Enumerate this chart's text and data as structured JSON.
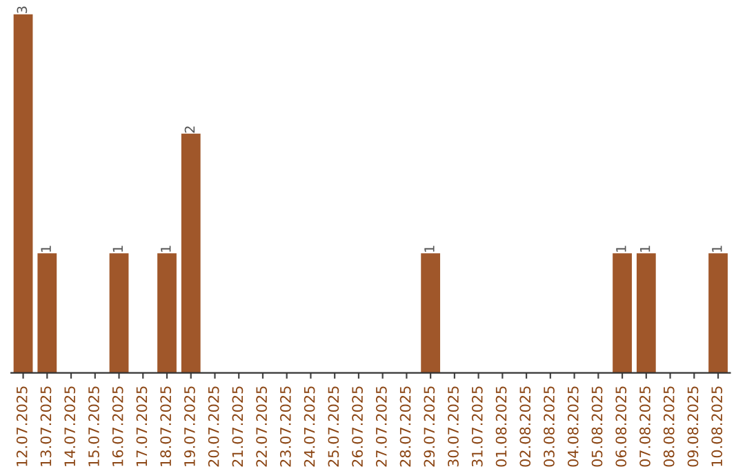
{
  "chart_data": {
    "type": "bar",
    "categories": [
      "12.07.2025",
      "13.07.2025",
      "14.07.2025",
      "15.07.2025",
      "16.07.2025",
      "17.07.2025",
      "18.07.2025",
      "19.07.2025",
      "20.07.2025",
      "21.07.2025",
      "22.07.2025",
      "23.07.2025",
      "24.07.2025",
      "25.07.2025",
      "26.07.2025",
      "27.07.2025",
      "28.07.2025",
      "29.07.2025",
      "30.07.2025",
      "31.07.2025",
      "01.08.2025",
      "02.08.2025",
      "03.08.2025",
      "04.08.2025",
      "05.08.2025",
      "06.08.2025",
      "07.08.2025",
      "08.08.2025",
      "09.08.2025",
      "10.08.2025"
    ],
    "values": [
      3,
      1,
      0,
      0,
      1,
      0,
      1,
      2,
      0,
      0,
      0,
      0,
      0,
      0,
      0,
      0,
      0,
      1,
      0,
      0,
      0,
      0,
      0,
      0,
      0,
      1,
      1,
      0,
      0,
      1
    ],
    "value_labels": [
      "3",
      "1",
      null,
      null,
      "1",
      null,
      "1",
      "2",
      null,
      null,
      null,
      null,
      null,
      null,
      null,
      null,
      null,
      "1",
      null,
      null,
      null,
      null,
      null,
      null,
      null,
      "1",
      "1",
      null,
      null,
      "1"
    ],
    "color": "#a0572a",
    "tick_labels": "x",
    "grid": false,
    "legend": false
  }
}
